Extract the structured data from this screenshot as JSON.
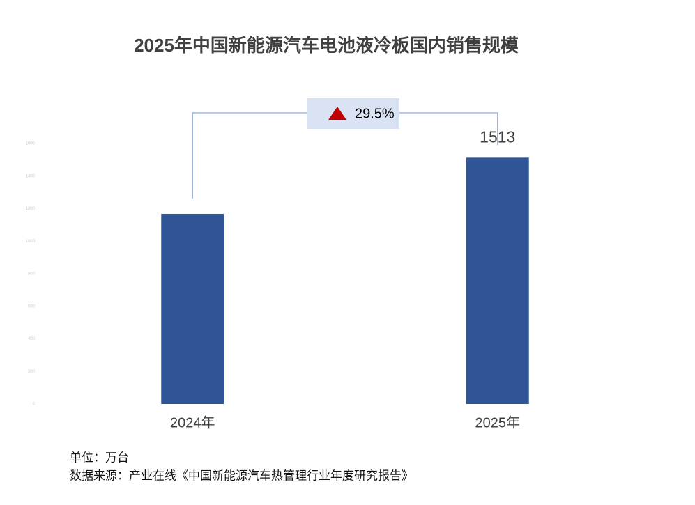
{
  "chart_data": {
    "type": "bar",
    "title": "2025年中国新能源汽车电池液冷板国内销售规模",
    "categories": [
      "2024年",
      "2025年"
    ],
    "values": [
      1168,
      1513
    ],
    "value_labels": [
      null,
      "1513"
    ],
    "color": "#2f5597",
    "ylim": [
      0,
      1600
    ],
    "yticks": [
      0,
      200,
      400,
      600,
      800,
      1000,
      1200,
      1400,
      1600
    ],
    "growth_annotation": "29.5%",
    "unit_note": "单位：万台",
    "source_note": "数据来源：产业在线《中国新能源汽车热管理行业年度研究报告》"
  }
}
